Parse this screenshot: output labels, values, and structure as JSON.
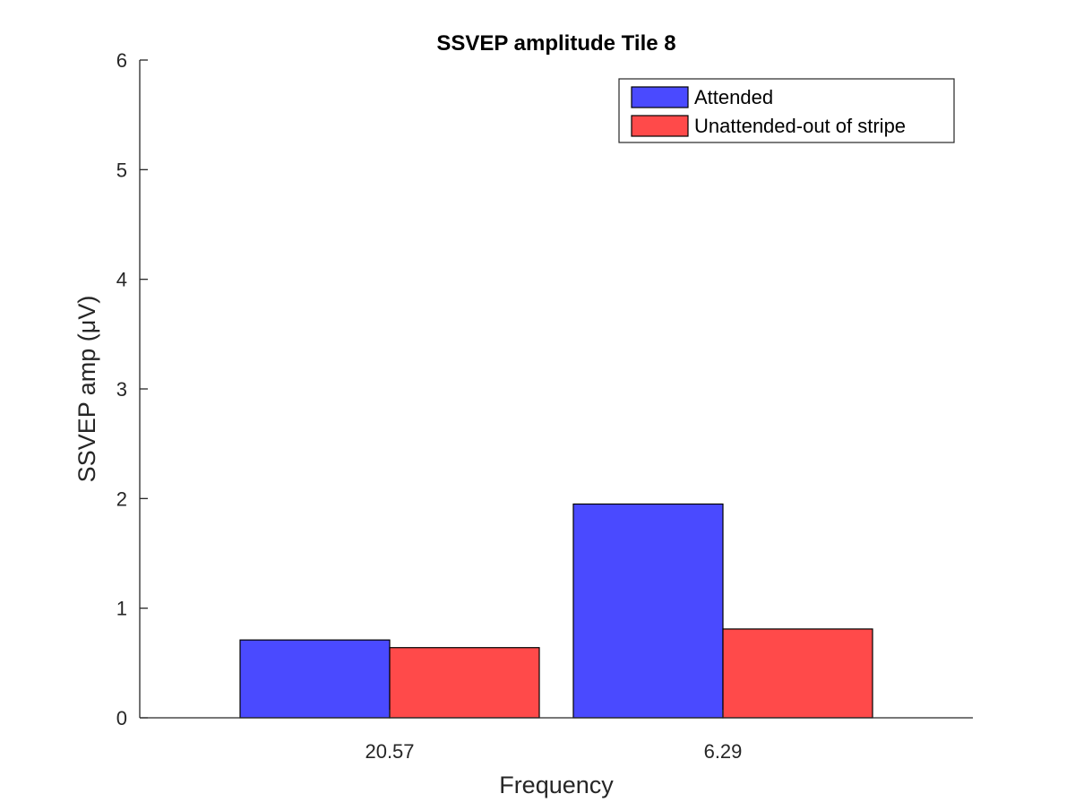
{
  "chart_data": {
    "type": "bar",
    "title": "SSVEP amplitude Tile 8",
    "xlabel": "Frequency",
    "ylabel": "SSVEP amp (μV)",
    "categories": [
      "20.57",
      "6.29"
    ],
    "series": [
      {
        "name": "Attended",
        "values": [
          0.71,
          1.95
        ]
      },
      {
        "name": "Unattended-out of stripe",
        "values": [
          0.64,
          0.81
        ]
      }
    ],
    "ylim": [
      0,
      6
    ],
    "yticks": [
      "0",
      "1",
      "2",
      "3",
      "4",
      "5",
      "6"
    ],
    "grid": false,
    "legend_position": "top-right",
    "colors": {
      "Attended": "#4a4aff",
      "Unattended-out of stripe": "#ff4a4a",
      "axis": "#262626",
      "bar_edge": "#000000"
    }
  }
}
